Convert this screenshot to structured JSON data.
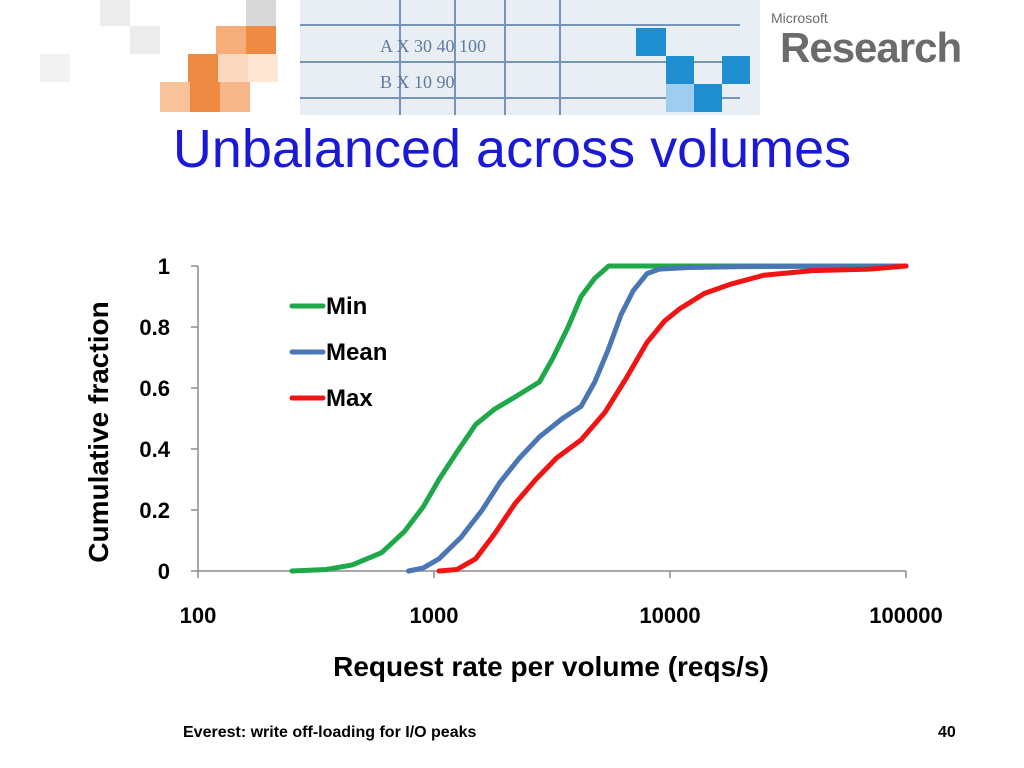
{
  "slide": {
    "title": "Unbalanced across volumes",
    "footer": "Everest: write off-loading for I/O peaks",
    "page_number": "40"
  },
  "logo": {
    "small": "Microsoft",
    "big": "Research"
  },
  "colors": {
    "title": "#1a1ad6",
    "min": "#1fa84a",
    "mean": "#4a76b4",
    "max": "#f01414"
  },
  "chart_data": {
    "type": "line",
    "xlabel": "Request rate per volume (reqs/s)",
    "ylabel": "Cumulative fraction",
    "x_scale": "log",
    "xlim": [
      100,
      100000
    ],
    "ylim": [
      0,
      1
    ],
    "x_ticks": [
      100,
      1000,
      10000,
      100000
    ],
    "x_tick_labels": [
      "100",
      "1000",
      "10000",
      "100000"
    ],
    "y_ticks": [
      0,
      0.2,
      0.4,
      0.6,
      0.8,
      1
    ],
    "y_tick_labels": [
      "0",
      "0.2",
      "0.4",
      "0.6",
      "0.8",
      "1"
    ],
    "grid": false,
    "legend_position": "top-left",
    "series": [
      {
        "name": "Min",
        "color": "#1fa84a",
        "x": [
          250,
          350,
          450,
          600,
          750,
          900,
          1050,
          1250,
          1500,
          1800,
          2200,
          2800,
          3200,
          3700,
          4200,
          4800,
          5500,
          8000,
          100000
        ],
        "y": [
          0,
          0.005,
          0.02,
          0.06,
          0.13,
          0.21,
          0.3,
          0.39,
          0.48,
          0.53,
          0.57,
          0.62,
          0.7,
          0.8,
          0.9,
          0.96,
          1.0,
          1.0,
          1.0
        ]
      },
      {
        "name": "Mean",
        "color": "#4a76b4",
        "x": [
          780,
          900,
          1050,
          1300,
          1600,
          1900,
          2300,
          2800,
          3500,
          4200,
          4800,
          5500,
          6200,
          7000,
          8000,
          9000,
          12000,
          20000,
          100000
        ],
        "y": [
          0,
          0.01,
          0.04,
          0.11,
          0.2,
          0.29,
          0.37,
          0.44,
          0.5,
          0.54,
          0.62,
          0.73,
          0.84,
          0.92,
          0.975,
          0.99,
          0.995,
          0.998,
          1.0
        ]
      },
      {
        "name": "Max",
        "color": "#f01414",
        "x": [
          1050,
          1250,
          1500,
          1800,
          2200,
          2700,
          3300,
          4200,
          5300,
          6500,
          8000,
          9500,
          11000,
          14000,
          18000,
          25000,
          40000,
          70000,
          100000
        ],
        "y": [
          0,
          0.005,
          0.04,
          0.12,
          0.22,
          0.3,
          0.37,
          0.43,
          0.52,
          0.63,
          0.75,
          0.82,
          0.86,
          0.91,
          0.94,
          0.97,
          0.985,
          0.99,
          1.0
        ]
      }
    ]
  }
}
